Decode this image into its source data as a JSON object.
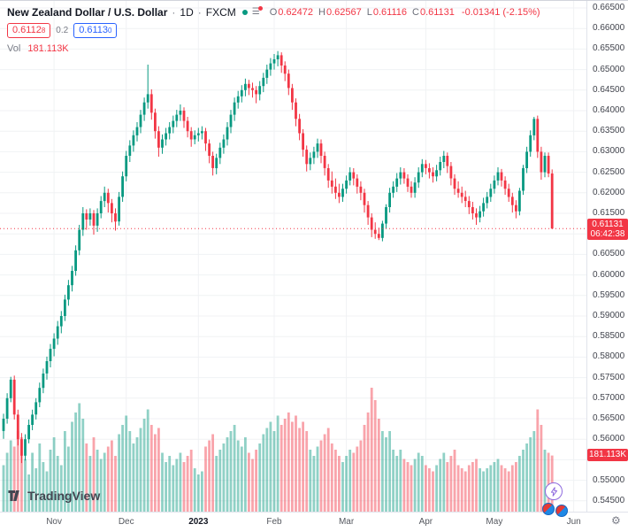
{
  "header": {
    "symbol_title": "New Zealand Dollar / U.S. Dollar",
    "sep": "·",
    "interval": "1D",
    "exchange": "FXCM",
    "ohlc": {
      "o_label": "O",
      "o": "0.62472",
      "h_label": "H",
      "h": "0.62567",
      "l_label": "L",
      "l": "0.61116",
      "c_label": "C",
      "c": "0.61131",
      "change": "-0.01341 (-2.15%)"
    },
    "bid": "0.6112",
    "bid_sup": "8",
    "spread": "0.2",
    "ask": "0.6113",
    "ask_sup": "0",
    "vol_label": "Vol",
    "vol_value": "181.113K"
  },
  "current": {
    "price_label": "0.61131",
    "countdown": "06:42:38",
    "volume_label": "181.113K"
  },
  "price_scale": {
    "labels": [
      "0.66500",
      "0.66000",
      "0.65500",
      "0.65000",
      "0.64500",
      "0.64000",
      "0.63500",
      "0.63000",
      "0.62500",
      "0.62000",
      "0.61500",
      "0.61000",
      "0.60500",
      "0.60000",
      "0.59500",
      "0.59000",
      "0.58500",
      "0.58000",
      "0.57500",
      "0.57000",
      "0.56500",
      "0.56000",
      "0.55500",
      "0.55000",
      "0.54500"
    ]
  },
  "time_scale": {
    "ticks": [
      {
        "label": "Nov",
        "idx": 14
      },
      {
        "label": "Dec",
        "idx": 34
      },
      {
        "label": "2023",
        "idx": 54,
        "bold": true
      },
      {
        "label": "Feb",
        "idx": 75
      },
      {
        "label": "Mar",
        "idx": 95
      },
      {
        "label": "Apr",
        "idx": 117
      },
      {
        "label": "May",
        "idx": 136
      },
      {
        "label": "Jun",
        "idx": 158
      }
    ]
  },
  "colors": {
    "up": "#089981",
    "down": "#f23645",
    "vol_up": "rgba(8,153,129,0.45)",
    "vol_down": "rgba(242,54,69,0.45)",
    "grid": "#f0f2f4",
    "accent_blue": "#2962ff",
    "badge_red": "#f23645"
  },
  "branding": {
    "name": "TradingView"
  },
  "chart_data": {
    "type": "candlestick",
    "title": "NZD/USD · 1D · FXCM",
    "y_axis": {
      "min": 0.545,
      "max": 0.665,
      "step": 0.005
    },
    "x_range": "Oct 2022 - Jun 2023",
    "volume_unit": "K",
    "columns": [
      "open",
      "high",
      "low",
      "close",
      "volume_K"
    ],
    "last_bar": {
      "open": 0.62472,
      "high": 0.62567,
      "low": 0.61116,
      "close": 0.61131,
      "change": -0.01341,
      "change_pct": -2.15,
      "volume": "181.113K"
    },
    "candles": [
      [
        0.562,
        0.5662,
        0.5601,
        0.565,
        150
      ],
      [
        0.565,
        0.5712,
        0.5638,
        0.57,
        190
      ],
      [
        0.57,
        0.5752,
        0.569,
        0.5745,
        230
      ],
      [
        0.5745,
        0.5755,
        0.5648,
        0.566,
        210
      ],
      [
        0.566,
        0.5672,
        0.5585,
        0.56,
        260
      ],
      [
        0.56,
        0.5615,
        0.5542,
        0.556,
        240
      ],
      [
        0.556,
        0.5612,
        0.5548,
        0.56,
        170
      ],
      [
        0.56,
        0.5648,
        0.559,
        0.5635,
        120
      ],
      [
        0.5635,
        0.5672,
        0.5622,
        0.566,
        190
      ],
      [
        0.566,
        0.57,
        0.5648,
        0.569,
        140
      ],
      [
        0.569,
        0.5738,
        0.5678,
        0.5725,
        220
      ],
      [
        0.5725,
        0.5772,
        0.5712,
        0.576,
        160
      ],
      [
        0.576,
        0.5801,
        0.5745,
        0.579,
        130
      ],
      [
        0.579,
        0.5832,
        0.5775,
        0.582,
        200
      ],
      [
        0.582,
        0.5858,
        0.5802,
        0.5845,
        240
      ],
      [
        0.5845,
        0.5888,
        0.583,
        0.5875,
        180
      ],
      [
        0.5875,
        0.5912,
        0.5858,
        0.59,
        150
      ],
      [
        0.59,
        0.5952,
        0.5888,
        0.594,
        260
      ],
      [
        0.594,
        0.5988,
        0.5925,
        0.5975,
        210
      ],
      [
        0.5975,
        0.6022,
        0.596,
        0.601,
        290
      ],
      [
        0.601,
        0.6072,
        0.5998,
        0.606,
        320
      ],
      [
        0.606,
        0.6122,
        0.6048,
        0.611,
        350
      ],
      [
        0.611,
        0.6165,
        0.6095,
        0.615,
        300
      ],
      [
        0.615,
        0.616,
        0.611,
        0.6135,
        220
      ],
      [
        0.6135,
        0.6162,
        0.612,
        0.615,
        180
      ],
      [
        0.615,
        0.6158,
        0.6098,
        0.612,
        240
      ],
      [
        0.612,
        0.6162,
        0.6105,
        0.615,
        200
      ],
      [
        0.615,
        0.6192,
        0.6138,
        0.618,
        170
      ],
      [
        0.618,
        0.6215,
        0.6165,
        0.62,
        190
      ],
      [
        0.62,
        0.621,
        0.6152,
        0.6175,
        210
      ],
      [
        0.6175,
        0.6185,
        0.6128,
        0.615,
        230
      ],
      [
        0.615,
        0.6162,
        0.6108,
        0.613,
        180
      ],
      [
        0.613,
        0.6202,
        0.612,
        0.619,
        250
      ],
      [
        0.619,
        0.6252,
        0.6178,
        0.624,
        280
      ],
      [
        0.624,
        0.6302,
        0.6228,
        0.629,
        310
      ],
      [
        0.629,
        0.6328,
        0.6275,
        0.6315,
        260
      ],
      [
        0.6315,
        0.6352,
        0.63,
        0.634,
        220
      ],
      [
        0.634,
        0.6372,
        0.6325,
        0.636,
        240
      ],
      [
        0.636,
        0.6402,
        0.6345,
        0.639,
        270
      ],
      [
        0.639,
        0.6432,
        0.6375,
        0.642,
        300
      ],
      [
        0.642,
        0.6512,
        0.6405,
        0.644,
        330
      ],
      [
        0.644,
        0.6452,
        0.6378,
        0.6395,
        280
      ],
      [
        0.6395,
        0.6405,
        0.6332,
        0.635,
        250
      ],
      [
        0.635,
        0.6362,
        0.6288,
        0.631,
        270
      ],
      [
        0.631,
        0.6342,
        0.6295,
        0.633,
        190
      ],
      [
        0.633,
        0.6358,
        0.6315,
        0.6345,
        160
      ],
      [
        0.6345,
        0.6372,
        0.633,
        0.636,
        180
      ],
      [
        0.636,
        0.6388,
        0.6345,
        0.6375,
        150
      ],
      [
        0.6375,
        0.6402,
        0.636,
        0.639,
        170
      ],
      [
        0.639,
        0.6415,
        0.6375,
        0.64,
        190
      ],
      [
        0.64,
        0.6408,
        0.6358,
        0.6375,
        160
      ],
      [
        0.6375,
        0.6385,
        0.6335,
        0.635,
        180
      ],
      [
        0.635,
        0.636,
        0.6312,
        0.633,
        200
      ],
      [
        0.633,
        0.6352,
        0.6318,
        0.634,
        140
      ],
      [
        0.634,
        0.6358,
        0.6325,
        0.6345,
        120
      ],
      [
        0.6345,
        0.6362,
        0.633,
        0.635,
        130
      ],
      [
        0.635,
        0.6358,
        0.6302,
        0.632,
        210
      ],
      [
        0.632,
        0.633,
        0.6272,
        0.629,
        230
      ],
      [
        0.629,
        0.63,
        0.6242,
        0.626,
        250
      ],
      [
        0.626,
        0.6295,
        0.6245,
        0.6285,
        180
      ],
      [
        0.6285,
        0.6322,
        0.627,
        0.631,
        200
      ],
      [
        0.631,
        0.6342,
        0.6295,
        0.633,
        220
      ],
      [
        0.633,
        0.6372,
        0.6315,
        0.636,
        240
      ],
      [
        0.636,
        0.6402,
        0.6345,
        0.639,
        260
      ],
      [
        0.639,
        0.6432,
        0.6375,
        0.642,
        280
      ],
      [
        0.642,
        0.6448,
        0.6405,
        0.6435,
        230
      ],
      [
        0.6435,
        0.6462,
        0.642,
        0.645,
        210
      ],
      [
        0.645,
        0.6478,
        0.6435,
        0.6465,
        240
      ],
      [
        0.6465,
        0.6475,
        0.6438,
        0.6455,
        190
      ],
      [
        0.6455,
        0.6468,
        0.6432,
        0.645,
        170
      ],
      [
        0.645,
        0.646,
        0.6418,
        0.644,
        200
      ],
      [
        0.644,
        0.6472,
        0.6425,
        0.646,
        220
      ],
      [
        0.646,
        0.6492,
        0.6445,
        0.648,
        250
      ],
      [
        0.648,
        0.6512,
        0.6465,
        0.65,
        270
      ],
      [
        0.65,
        0.6528,
        0.6485,
        0.6515,
        290
      ],
      [
        0.6515,
        0.6538,
        0.65,
        0.6525,
        260
      ],
      [
        0.6525,
        0.6545,
        0.6508,
        0.6535,
        310
      ],
      [
        0.6535,
        0.6542,
        0.6492,
        0.651,
        280
      ],
      [
        0.651,
        0.652,
        0.6472,
        0.649,
        300
      ],
      [
        0.649,
        0.65,
        0.6438,
        0.6455,
        320
      ],
      [
        0.6455,
        0.6465,
        0.6402,
        0.642,
        290
      ],
      [
        0.642,
        0.643,
        0.6362,
        0.638,
        310
      ],
      [
        0.638,
        0.6392,
        0.6328,
        0.6345,
        270
      ],
      [
        0.6345,
        0.6355,
        0.6288,
        0.6305,
        290
      ],
      [
        0.6305,
        0.6315,
        0.6252,
        0.627,
        260
      ],
      [
        0.627,
        0.6298,
        0.6255,
        0.6285,
        200
      ],
      [
        0.6285,
        0.6312,
        0.627,
        0.63,
        180
      ],
      [
        0.63,
        0.6332,
        0.6285,
        0.632,
        210
      ],
      [
        0.632,
        0.633,
        0.6272,
        0.629,
        230
      ],
      [
        0.629,
        0.63,
        0.6242,
        0.626,
        250
      ],
      [
        0.626,
        0.627,
        0.6212,
        0.623,
        270
      ],
      [
        0.623,
        0.6252,
        0.6198,
        0.6215,
        220
      ],
      [
        0.6215,
        0.6235,
        0.6185,
        0.62,
        200
      ],
      [
        0.62,
        0.6222,
        0.6175,
        0.619,
        180
      ],
      [
        0.619,
        0.6222,
        0.6178,
        0.621,
        160
      ],
      [
        0.621,
        0.6242,
        0.6198,
        0.623,
        180
      ],
      [
        0.623,
        0.6262,
        0.6218,
        0.625,
        200
      ],
      [
        0.625,
        0.626,
        0.6218,
        0.6235,
        190
      ],
      [
        0.6235,
        0.6245,
        0.6198,
        0.6215,
        210
      ],
      [
        0.6215,
        0.6228,
        0.6182,
        0.62,
        230
      ],
      [
        0.62,
        0.621,
        0.6152,
        0.617,
        280
      ],
      [
        0.617,
        0.618,
        0.6122,
        0.614,
        320
      ],
      [
        0.614,
        0.615,
        0.6092,
        0.611,
        400
      ],
      [
        0.611,
        0.6128,
        0.6088,
        0.61,
        360
      ],
      [
        0.61,
        0.6115,
        0.6085,
        0.609,
        300
      ],
      [
        0.609,
        0.6132,
        0.6082,
        0.6125,
        260
      ],
      [
        0.6125,
        0.6172,
        0.6112,
        0.6165,
        240
      ],
      [
        0.6165,
        0.6212,
        0.6152,
        0.62,
        260
      ],
      [
        0.62,
        0.6228,
        0.6188,
        0.6215,
        200
      ],
      [
        0.6215,
        0.6248,
        0.6202,
        0.6235,
        180
      ],
      [
        0.6235,
        0.6262,
        0.622,
        0.625,
        200
      ],
      [
        0.625,
        0.626,
        0.6222,
        0.6235,
        170
      ],
      [
        0.6235,
        0.6245,
        0.6202,
        0.6215,
        160
      ],
      [
        0.6215,
        0.6228,
        0.6188,
        0.62,
        150
      ],
      [
        0.62,
        0.6238,
        0.6188,
        0.6225,
        170
      ],
      [
        0.6225,
        0.6262,
        0.6212,
        0.625,
        190
      ],
      [
        0.625,
        0.6282,
        0.6238,
        0.627,
        180
      ],
      [
        0.627,
        0.628,
        0.6245,
        0.626,
        150
      ],
      [
        0.626,
        0.6272,
        0.6235,
        0.625,
        140
      ],
      [
        0.625,
        0.6262,
        0.6225,
        0.624,
        130
      ],
      [
        0.624,
        0.6268,
        0.6228,
        0.6255,
        150
      ],
      [
        0.6255,
        0.6288,
        0.6242,
        0.6275,
        170
      ],
      [
        0.6275,
        0.6302,
        0.626,
        0.629,
        190
      ],
      [
        0.629,
        0.6298,
        0.6248,
        0.6265,
        160
      ],
      [
        0.6265,
        0.6275,
        0.6218,
        0.6235,
        180
      ],
      [
        0.6235,
        0.6245,
        0.6195,
        0.621,
        200
      ],
      [
        0.621,
        0.6228,
        0.6188,
        0.62,
        150
      ],
      [
        0.62,
        0.6215,
        0.6175,
        0.619,
        140
      ],
      [
        0.619,
        0.6205,
        0.6165,
        0.618,
        130
      ],
      [
        0.618,
        0.6192,
        0.6148,
        0.6165,
        150
      ],
      [
        0.6165,
        0.6178,
        0.6135,
        0.615,
        160
      ],
      [
        0.615,
        0.6162,
        0.6122,
        0.614,
        170
      ],
      [
        0.614,
        0.6168,
        0.6128,
        0.6155,
        140
      ],
      [
        0.6155,
        0.6188,
        0.6142,
        0.6175,
        130
      ],
      [
        0.6175,
        0.6202,
        0.6162,
        0.619,
        140
      ],
      [
        0.619,
        0.6222,
        0.6178,
        0.621,
        150
      ],
      [
        0.621,
        0.6242,
        0.6198,
        0.623,
        160
      ],
      [
        0.623,
        0.6262,
        0.6218,
        0.625,
        170
      ],
      [
        0.625,
        0.6258,
        0.6215,
        0.623,
        150
      ],
      [
        0.623,
        0.624,
        0.6195,
        0.621,
        140
      ],
      [
        0.621,
        0.6222,
        0.6178,
        0.619,
        130
      ],
      [
        0.619,
        0.62,
        0.6152,
        0.617,
        150
      ],
      [
        0.617,
        0.6182,
        0.6138,
        0.6155,
        160
      ],
      [
        0.6155,
        0.6212,
        0.6145,
        0.6205,
        180
      ],
      [
        0.6205,
        0.6268,
        0.6195,
        0.626,
        200
      ],
      [
        0.626,
        0.6312,
        0.6248,
        0.63,
        220
      ],
      [
        0.63,
        0.6352,
        0.6288,
        0.634,
        240
      ],
      [
        0.634,
        0.6385,
        0.6328,
        0.638,
        260
      ],
      [
        0.638,
        0.6388,
        0.6285,
        0.63,
        330
      ],
      [
        0.63,
        0.6312,
        0.6232,
        0.625,
        280
      ],
      [
        0.625,
        0.6298,
        0.6238,
        0.629,
        200
      ],
      [
        0.629,
        0.6298,
        0.6238,
        0.6247,
        190
      ],
      [
        0.6247,
        0.6257,
        0.6112,
        0.6113,
        181
      ]
    ]
  }
}
